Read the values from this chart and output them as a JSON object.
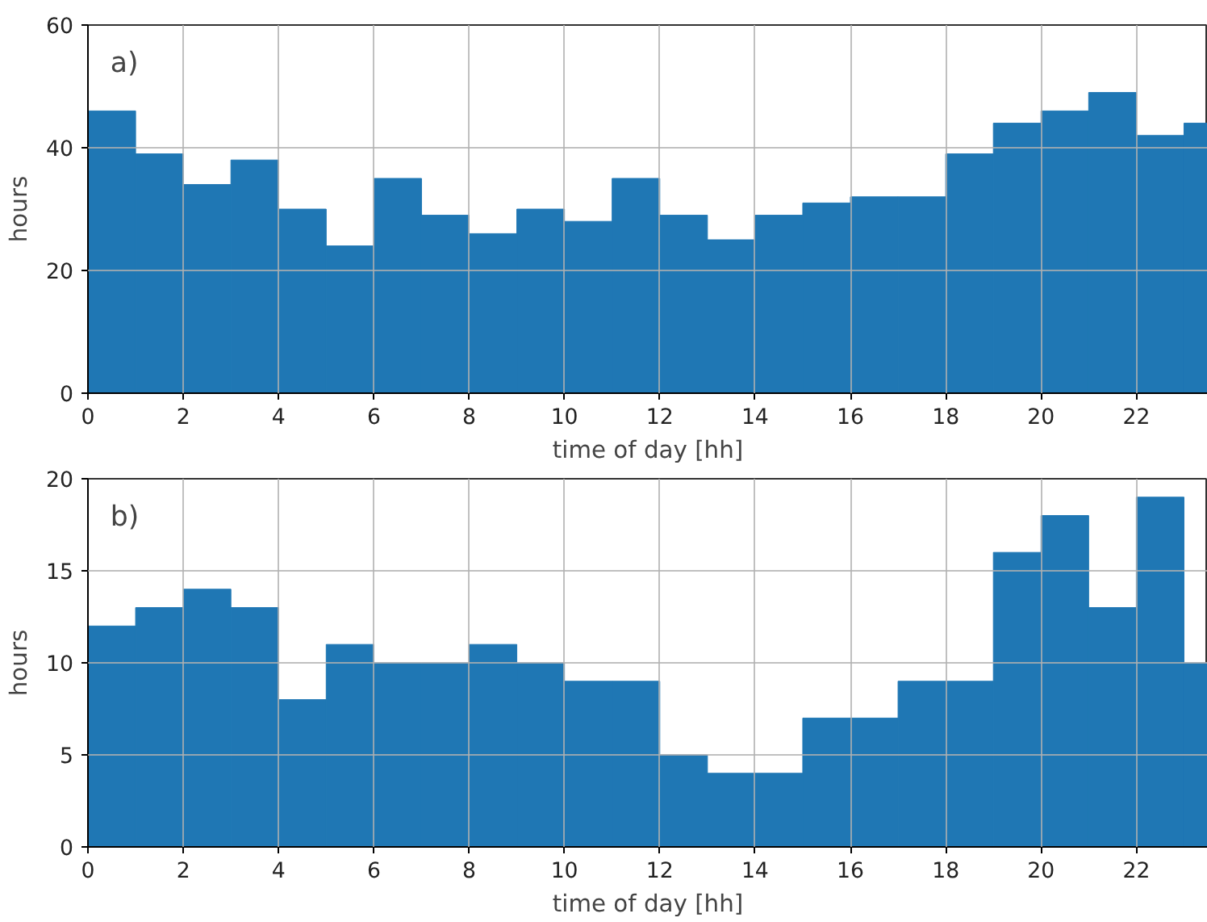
{
  "chart_data": [
    {
      "type": "histogram",
      "annotations": [
        "a)"
      ],
      "xlabel": "time of day [hh]",
      "ylabel": "hours",
      "color": "#1f77b4",
      "bins": [
        0,
        1,
        2,
        3,
        4,
        5,
        6,
        7,
        8,
        9,
        10,
        11,
        12,
        13,
        14,
        15,
        16,
        17,
        18,
        19,
        20,
        21,
        22,
        23,
        24
      ],
      "values": [
        46,
        39,
        34,
        38,
        30,
        24,
        35,
        29,
        26,
        30,
        28,
        35,
        29,
        25,
        29,
        31,
        32,
        32,
        39,
        44,
        46,
        49,
        42,
        44
      ],
      "xlim": [
        0,
        23.5
      ],
      "xticks": [
        0,
        2,
        4,
        6,
        8,
        10,
        12,
        14,
        16,
        18,
        20,
        22
      ],
      "ylim": [
        0,
        60
      ],
      "yticks": [
        0,
        20,
        40,
        60
      ],
      "grid": true
    },
    {
      "type": "histogram",
      "annotations": [
        "b)"
      ],
      "xlabel": "time of day [hh]",
      "ylabel": "hours",
      "color": "#1f77b4",
      "bins": [
        0,
        1,
        2,
        3,
        4,
        5,
        6,
        7,
        8,
        9,
        10,
        11,
        12,
        13,
        14,
        15,
        16,
        17,
        18,
        19,
        20,
        21,
        22,
        23,
        24
      ],
      "values": [
        12,
        13,
        14,
        13,
        8,
        11,
        10,
        10,
        11,
        10,
        9,
        9,
        5,
        4,
        4,
        7,
        7,
        9,
        9,
        16,
        18,
        13,
        19,
        10
      ],
      "xlim": [
        0,
        23.5
      ],
      "xticks": [
        0,
        2,
        4,
        6,
        8,
        10,
        12,
        14,
        16,
        18,
        20,
        22
      ],
      "ylim": [
        0,
        20
      ],
      "yticks": [
        0,
        5,
        10,
        15,
        20
      ],
      "grid": true
    }
  ]
}
